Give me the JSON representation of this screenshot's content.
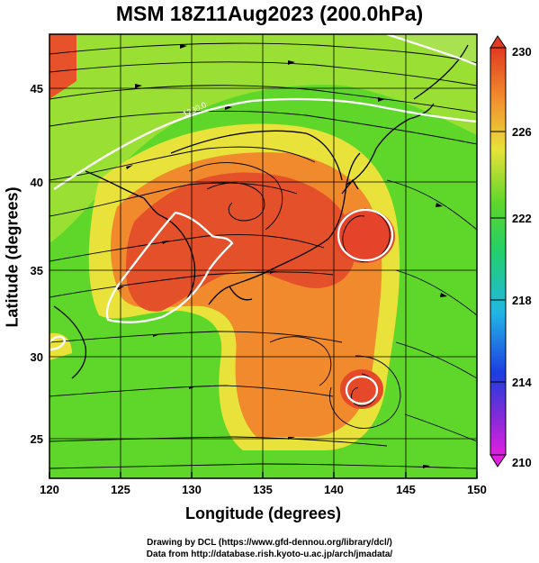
{
  "title": "MSM 18Z11Aug2023 (200.0hPa)",
  "xlabel": "Longitude (degrees)",
  "ylabel": "Latitude  (degrees)",
  "credit_line1": "Drawing by DCL (https://www.gfd-dennou.org/library/dcl/)",
  "credit_line2": "Data from http://database.rish.kyoto-u.ac.jp/arch/jmadata/",
  "contour_label": "1230.0",
  "x_ticks": [
    "120",
    "125",
    "130",
    "135",
    "140",
    "145",
    "150"
  ],
  "y_ticks": [
    "45",
    "40",
    "35",
    "30",
    "25"
  ],
  "colorbar_ticks": [
    "230",
    "226",
    "222",
    "218",
    "214",
    "210"
  ],
  "colors": {
    "green": "#5fd62a",
    "yellow": "#e8e23a",
    "orange": "#f08a2c",
    "red": "#e23a22",
    "contour": "#ffffff"
  }
}
